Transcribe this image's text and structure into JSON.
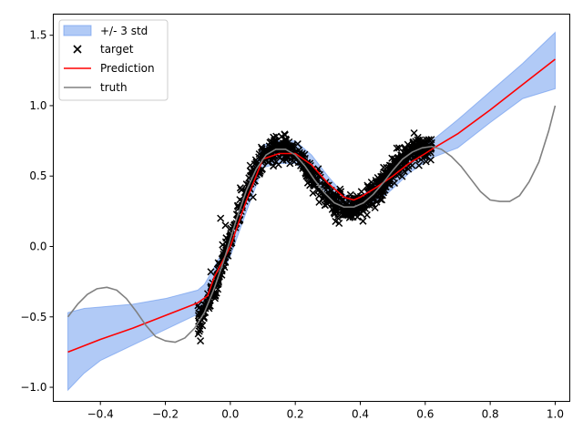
{
  "chart_data": {
    "type": "line",
    "xlim": [
      -0.545,
      1.045
    ],
    "ylim": [
      -1.1,
      1.65
    ],
    "x_ticks": [
      -0.4,
      -0.2,
      0.0,
      0.2,
      0.4,
      0.6,
      0.8,
      1.0
    ],
    "x_tick_labels": [
      "−0.4",
      "−0.2",
      "0.0",
      "0.2",
      "0.4",
      "0.6",
      "0.8",
      "1.0"
    ],
    "y_ticks": [
      -1.0,
      -0.5,
      0.0,
      0.5,
      1.0,
      1.5
    ],
    "y_tick_labels": [
      "−1.0",
      "−0.5",
      "0.0",
      "0.5",
      "1.0",
      "1.5"
    ],
    "legend": {
      "placement": "top-left",
      "entries": [
        "+/- 3 std",
        "target",
        "Prediction",
        "truth"
      ]
    },
    "colors": {
      "band_fill": "#6495ed",
      "band_opacity": 0.5,
      "prediction": "#ff0000",
      "truth": "#808080",
      "target": "#000000"
    },
    "series": [
      {
        "name": "+/- 3 std",
        "kind": "band",
        "x": [
          -0.5,
          -0.45,
          -0.4,
          -0.3,
          -0.2,
          -0.1,
          -0.08,
          -0.05,
          0.0,
          0.05,
          0.1,
          0.15,
          0.2,
          0.25,
          0.3,
          0.35,
          0.38,
          0.4,
          0.45,
          0.5,
          0.55,
          0.6,
          0.62,
          0.7,
          0.8,
          0.9,
          1.0
        ],
        "upper": [
          -0.47,
          -0.44,
          -0.43,
          -0.41,
          -0.37,
          -0.31,
          -0.27,
          -0.15,
          0.07,
          0.42,
          0.72,
          0.75,
          0.75,
          0.65,
          0.5,
          0.37,
          0.34,
          0.35,
          0.45,
          0.57,
          0.67,
          0.72,
          0.75,
          0.9,
          1.1,
          1.3,
          1.52
        ],
        "lower": [
          -1.02,
          -0.9,
          -0.81,
          -0.7,
          -0.59,
          -0.48,
          -0.45,
          -0.3,
          -0.07,
          0.25,
          0.56,
          0.59,
          0.59,
          0.5,
          0.36,
          0.24,
          0.22,
          0.25,
          0.31,
          0.41,
          0.52,
          0.6,
          0.63,
          0.7,
          0.88,
          1.05,
          1.12
        ]
      },
      {
        "name": "Prediction",
        "kind": "line",
        "x": [
          -0.5,
          -0.4,
          -0.3,
          -0.2,
          -0.1,
          -0.07,
          -0.05,
          0.0,
          0.05,
          0.1,
          0.15,
          0.2,
          0.25,
          0.3,
          0.35,
          0.38,
          0.4,
          0.45,
          0.5,
          0.55,
          0.6,
          0.62,
          0.7,
          0.8,
          0.9,
          1.0
        ],
        "y": [
          -0.75,
          -0.66,
          -0.58,
          -0.49,
          -0.4,
          -0.35,
          -0.22,
          0.0,
          0.33,
          0.62,
          0.66,
          0.66,
          0.58,
          0.45,
          0.35,
          0.33,
          0.35,
          0.42,
          0.5,
          0.59,
          0.66,
          0.69,
          0.8,
          0.97,
          1.15,
          1.33
        ]
      },
      {
        "name": "truth",
        "kind": "line",
        "x": [
          -0.5,
          -0.47,
          -0.44,
          -0.41,
          -0.38,
          -0.35,
          -0.32,
          -0.29,
          -0.26,
          -0.23,
          -0.2,
          -0.17,
          -0.14,
          -0.11,
          -0.08,
          -0.05,
          -0.02,
          0.0,
          0.02,
          0.05,
          0.08,
          0.11,
          0.14,
          0.17,
          0.2,
          0.23,
          0.26,
          0.29,
          0.32,
          0.35,
          0.38,
          0.41,
          0.44,
          0.47,
          0.5,
          0.53,
          0.56,
          0.59,
          0.62,
          0.65,
          0.68,
          0.71,
          0.74,
          0.77,
          0.8,
          0.83,
          0.86,
          0.89,
          0.92,
          0.95,
          0.98,
          1.0
        ],
        "y": [
          -0.5,
          -0.41,
          -0.34,
          -0.3,
          -0.29,
          -0.31,
          -0.37,
          -0.46,
          -0.56,
          -0.64,
          -0.67,
          -0.68,
          -0.65,
          -0.58,
          -0.47,
          -0.3,
          -0.1,
          0.05,
          0.2,
          0.4,
          0.55,
          0.65,
          0.69,
          0.69,
          0.65,
          0.57,
          0.47,
          0.38,
          0.31,
          0.28,
          0.28,
          0.31,
          0.37,
          0.45,
          0.54,
          0.62,
          0.67,
          0.7,
          0.71,
          0.69,
          0.64,
          0.57,
          0.48,
          0.39,
          0.33,
          0.32,
          0.32,
          0.36,
          0.46,
          0.6,
          0.82,
          1.0
        ]
      }
    ],
    "target": {
      "name": "target",
      "kind": "scatter",
      "marker": "x",
      "x_range": [
        -0.1,
        0.62
      ],
      "count": 900,
      "scatter_std": 0.045,
      "outliers": [
        {
          "x": -0.03,
          "y": 0.2
        },
        {
          "x": -0.015,
          "y": 0.15
        },
        {
          "x": -0.06,
          "y": -0.18
        },
        {
          "x": 0.07,
          "y": 0.35
        }
      ]
    }
  }
}
